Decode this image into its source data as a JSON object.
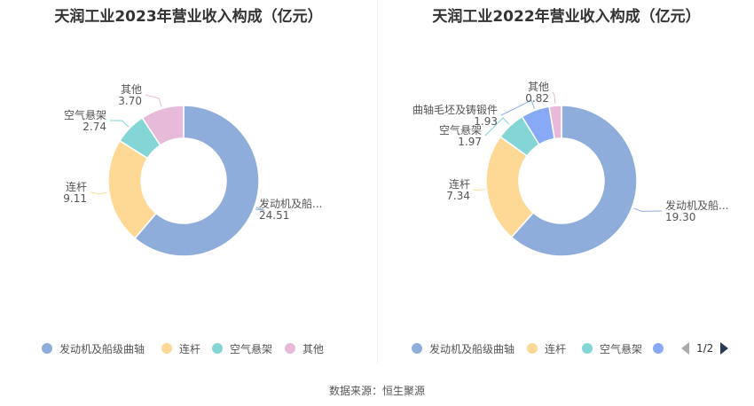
{
  "chart_data": [
    {
      "type": "pie",
      "title": "天润工业2023年营业收入构成（亿元）",
      "slices": [
        {
          "name": "发动机及船级曲轴",
          "label": "发动机及船...",
          "value": 24.51,
          "value_text": "24.51",
          "color": "#8fadda"
        },
        {
          "name": "连杆",
          "label": "连杆",
          "value": 9.11,
          "value_text": "9.11",
          "color": "#fdd995"
        },
        {
          "name": "空气悬架",
          "label": "空气悬架",
          "value": 2.74,
          "value_text": "2.74",
          "color": "#84d6d6"
        },
        {
          "name": "其他",
          "label": "其他",
          "value": 3.7,
          "value_text": "3.70",
          "color": "#e8bad9"
        }
      ],
      "legend": [
        "发动机及船级曲轴",
        "连杆",
        "空气悬架",
        "其他"
      ],
      "legend_position": "bottom"
    },
    {
      "type": "pie",
      "title": "天润工业2022年营业收入构成（亿元）",
      "slices": [
        {
          "name": "发动机及船级曲轴",
          "label": "发动机及船...",
          "value": 19.3,
          "value_text": "19.30",
          "color": "#8fadda"
        },
        {
          "name": "连杆",
          "label": "连杆",
          "value": 7.34,
          "value_text": "7.34",
          "color": "#fdd995"
        },
        {
          "name": "空气悬架",
          "label": "空气悬架",
          "value": 1.97,
          "value_text": "1.97",
          "color": "#84d6d6"
        },
        {
          "name": "曲轴毛坯及铸锻件",
          "label": "曲轴毛坯及铸锻件",
          "value": 1.93,
          "value_text": "1.93",
          "color": "#88a9f5"
        },
        {
          "name": "其他",
          "label": "其他",
          "value": 0.82,
          "value_text": "0.82",
          "color": "#e8bad9"
        }
      ],
      "legend": [
        "发动机及船级曲轴",
        "连杆",
        "空气悬架",
        ""
      ],
      "legend_position": "bottom",
      "pager": "1/2"
    }
  ],
  "source": "数据来源：恒生聚源"
}
